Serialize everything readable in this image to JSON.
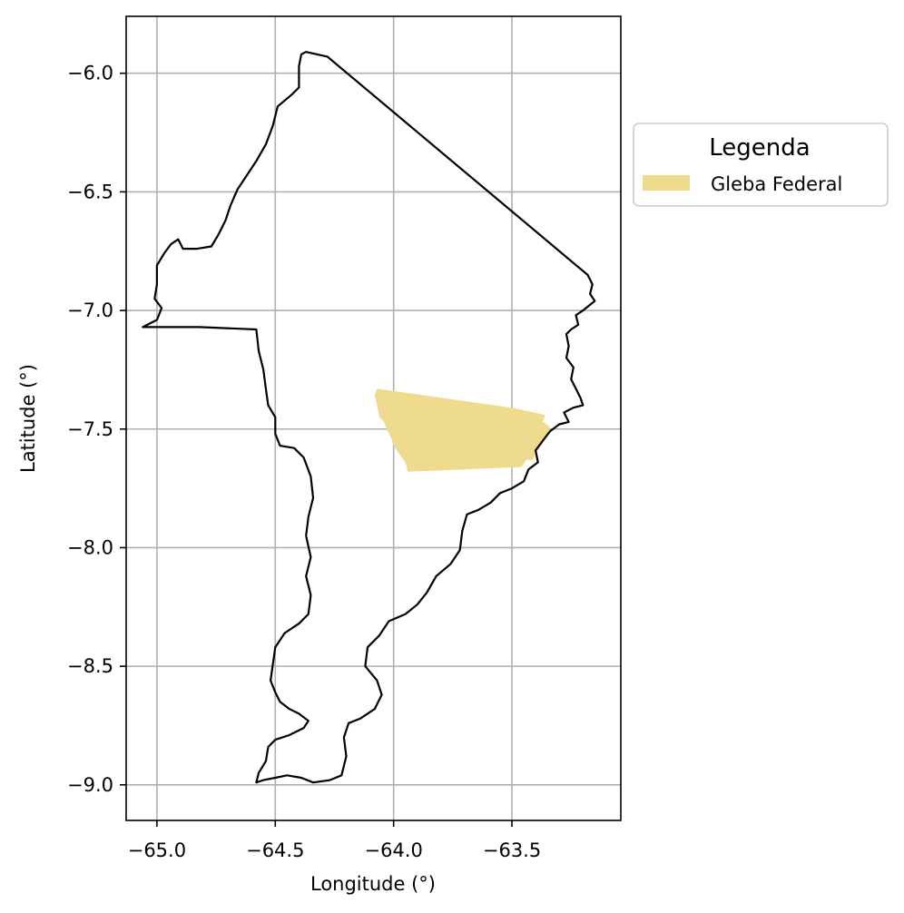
{
  "chart_data": {
    "type": "map",
    "xlabel": "Longitude (°)",
    "ylabel": "Latitude (°)",
    "xlim": [
      -65.13,
      -63.04
    ],
    "ylim": [
      -9.15,
      -5.76
    ],
    "x_ticks": [
      -65.0,
      -64.5,
      -64.0,
      -63.5
    ],
    "x_tick_labels": [
      "−65.0",
      "−64.5",
      "−64.0",
      "−63.5"
    ],
    "y_ticks": [
      -6.0,
      -6.5,
      -7.0,
      -7.5,
      -8.0,
      -8.5,
      -9.0
    ],
    "y_tick_labels": [
      "−6.0",
      "−6.5",
      "−7.0",
      "−7.5",
      "−8.0",
      "−8.5",
      "−9.0"
    ],
    "grid": true,
    "legend": {
      "title": "Legenda",
      "placement": "outside-right-top",
      "entries": [
        {
          "label": "Gleba Federal",
          "color": "#eedb8e"
        }
      ]
    },
    "layers": [
      {
        "name": "Gleba Federal",
        "kind": "polygon",
        "fill": "#eedb8e",
        "coords": [
          [
            -64.07,
            -7.33
          ],
          [
            -63.5,
            -7.41
          ],
          [
            -63.36,
            -7.44
          ],
          [
            -63.37,
            -7.47
          ],
          [
            -63.34,
            -7.49
          ],
          [
            -63.35,
            -7.52
          ],
          [
            -63.37,
            -7.56
          ],
          [
            -63.4,
            -7.6
          ],
          [
            -63.41,
            -7.63
          ],
          [
            -63.44,
            -7.63
          ],
          [
            -63.46,
            -7.66
          ],
          [
            -63.7,
            -7.67
          ],
          [
            -63.94,
            -7.68
          ],
          [
            -63.95,
            -7.64
          ],
          [
            -63.98,
            -7.6
          ],
          [
            -64.0,
            -7.57
          ],
          [
            -64.01,
            -7.54
          ],
          [
            -64.03,
            -7.5
          ],
          [
            -64.04,
            -7.47
          ],
          [
            -64.06,
            -7.45
          ],
          [
            -64.07,
            -7.4
          ],
          [
            -64.08,
            -7.36
          ],
          [
            -64.07,
            -7.33
          ]
        ]
      },
      {
        "name": "Boundary",
        "kind": "outline",
        "stroke": "#000000",
        "coords": [
          [
            -64.37,
            -5.91
          ],
          [
            -64.28,
            -5.93
          ],
          [
            -63.18,
            -6.85
          ],
          [
            -63.16,
            -6.89
          ],
          [
            -63.17,
            -6.93
          ],
          [
            -63.15,
            -6.96
          ],
          [
            -63.2,
            -7.0
          ],
          [
            -63.23,
            -7.02
          ],
          [
            -63.22,
            -7.06
          ],
          [
            -63.25,
            -7.08
          ],
          [
            -63.27,
            -7.1
          ],
          [
            -63.26,
            -7.15
          ],
          [
            -63.27,
            -7.2
          ],
          [
            -63.24,
            -7.24
          ],
          [
            -63.25,
            -7.29
          ],
          [
            -63.23,
            -7.33
          ],
          [
            -63.21,
            -7.37
          ],
          [
            -63.2,
            -7.4
          ],
          [
            -63.24,
            -7.41
          ],
          [
            -63.28,
            -7.43
          ],
          [
            -63.26,
            -7.47
          ],
          [
            -63.3,
            -7.48
          ],
          [
            -63.34,
            -7.51
          ],
          [
            -63.37,
            -7.55
          ],
          [
            -63.4,
            -7.59
          ],
          [
            -63.39,
            -7.64
          ],
          [
            -63.43,
            -7.67
          ],
          [
            -63.45,
            -7.72
          ],
          [
            -63.5,
            -7.75
          ],
          [
            -63.55,
            -7.77
          ],
          [
            -63.59,
            -7.81
          ],
          [
            -63.64,
            -7.84
          ],
          [
            -63.69,
            -7.86
          ],
          [
            -63.71,
            -7.93
          ],
          [
            -63.72,
            -8.01
          ],
          [
            -63.76,
            -8.07
          ],
          [
            -63.82,
            -8.12
          ],
          [
            -63.86,
            -8.19
          ],
          [
            -63.9,
            -8.24
          ],
          [
            -63.95,
            -8.28
          ],
          [
            -64.02,
            -8.31
          ],
          [
            -64.06,
            -8.37
          ],
          [
            -64.11,
            -8.42
          ],
          [
            -64.12,
            -8.5
          ],
          [
            -64.07,
            -8.56
          ],
          [
            -64.05,
            -8.62
          ],
          [
            -64.08,
            -8.68
          ],
          [
            -64.14,
            -8.72
          ],
          [
            -64.19,
            -8.74
          ],
          [
            -64.21,
            -8.8
          ],
          [
            -64.2,
            -8.88
          ],
          [
            -64.22,
            -8.96
          ],
          [
            -64.27,
            -8.98
          ],
          [
            -64.34,
            -8.99
          ],
          [
            -64.39,
            -8.97
          ],
          [
            -64.45,
            -8.96
          ],
          [
            -64.5,
            -8.97
          ],
          [
            -64.55,
            -8.98
          ],
          [
            -64.58,
            -8.99
          ],
          [
            -64.57,
            -8.95
          ],
          [
            -64.54,
            -8.9
          ],
          [
            -64.53,
            -8.84
          ],
          [
            -64.5,
            -8.81
          ],
          [
            -64.44,
            -8.79
          ],
          [
            -64.38,
            -8.76
          ],
          [
            -64.36,
            -8.73
          ],
          [
            -64.4,
            -8.7
          ],
          [
            -64.44,
            -8.68
          ],
          [
            -64.48,
            -8.65
          ],
          [
            -64.5,
            -8.61
          ],
          [
            -64.52,
            -8.56
          ],
          [
            -64.51,
            -8.49
          ],
          [
            -64.5,
            -8.42
          ],
          [
            -64.46,
            -8.36
          ],
          [
            -64.4,
            -8.32
          ],
          [
            -64.36,
            -8.28
          ],
          [
            -64.35,
            -8.2
          ],
          [
            -64.37,
            -8.12
          ],
          [
            -64.35,
            -8.04
          ],
          [
            -64.37,
            -7.95
          ],
          [
            -64.36,
            -7.87
          ],
          [
            -64.34,
            -7.79
          ],
          [
            -64.35,
            -7.7
          ],
          [
            -64.38,
            -7.62
          ],
          [
            -64.42,
            -7.58
          ],
          [
            -64.48,
            -7.57
          ],
          [
            -64.5,
            -7.52
          ],
          [
            -64.5,
            -7.45
          ],
          [
            -64.53,
            -7.4
          ],
          [
            -64.54,
            -7.33
          ],
          [
            -64.55,
            -7.25
          ],
          [
            -64.57,
            -7.17
          ],
          [
            -64.58,
            -7.08
          ],
          [
            -64.82,
            -7.07
          ],
          [
            -65.06,
            -7.07
          ],
          [
            -65.0,
            -7.04
          ],
          [
            -64.98,
            -6.99
          ],
          [
            -65.01,
            -6.95
          ],
          [
            -65.0,
            -6.89
          ],
          [
            -65.0,
            -6.81
          ],
          [
            -64.97,
            -6.76
          ],
          [
            -64.94,
            -6.72
          ],
          [
            -64.91,
            -6.7
          ],
          [
            -64.89,
            -6.74
          ],
          [
            -64.83,
            -6.74
          ],
          [
            -64.77,
            -6.73
          ],
          [
            -64.74,
            -6.68
          ],
          [
            -64.71,
            -6.62
          ],
          [
            -64.69,
            -6.56
          ],
          [
            -64.66,
            -6.49
          ],
          [
            -64.62,
            -6.43
          ],
          [
            -64.58,
            -6.37
          ],
          [
            -64.54,
            -6.3
          ],
          [
            -64.51,
            -6.22
          ],
          [
            -64.49,
            -6.14
          ],
          [
            -64.43,
            -6.09
          ],
          [
            -64.4,
            -6.06
          ],
          [
            -64.4,
            -5.97
          ],
          [
            -64.39,
            -5.92
          ],
          [
            -64.37,
            -5.91
          ]
        ]
      }
    ]
  }
}
